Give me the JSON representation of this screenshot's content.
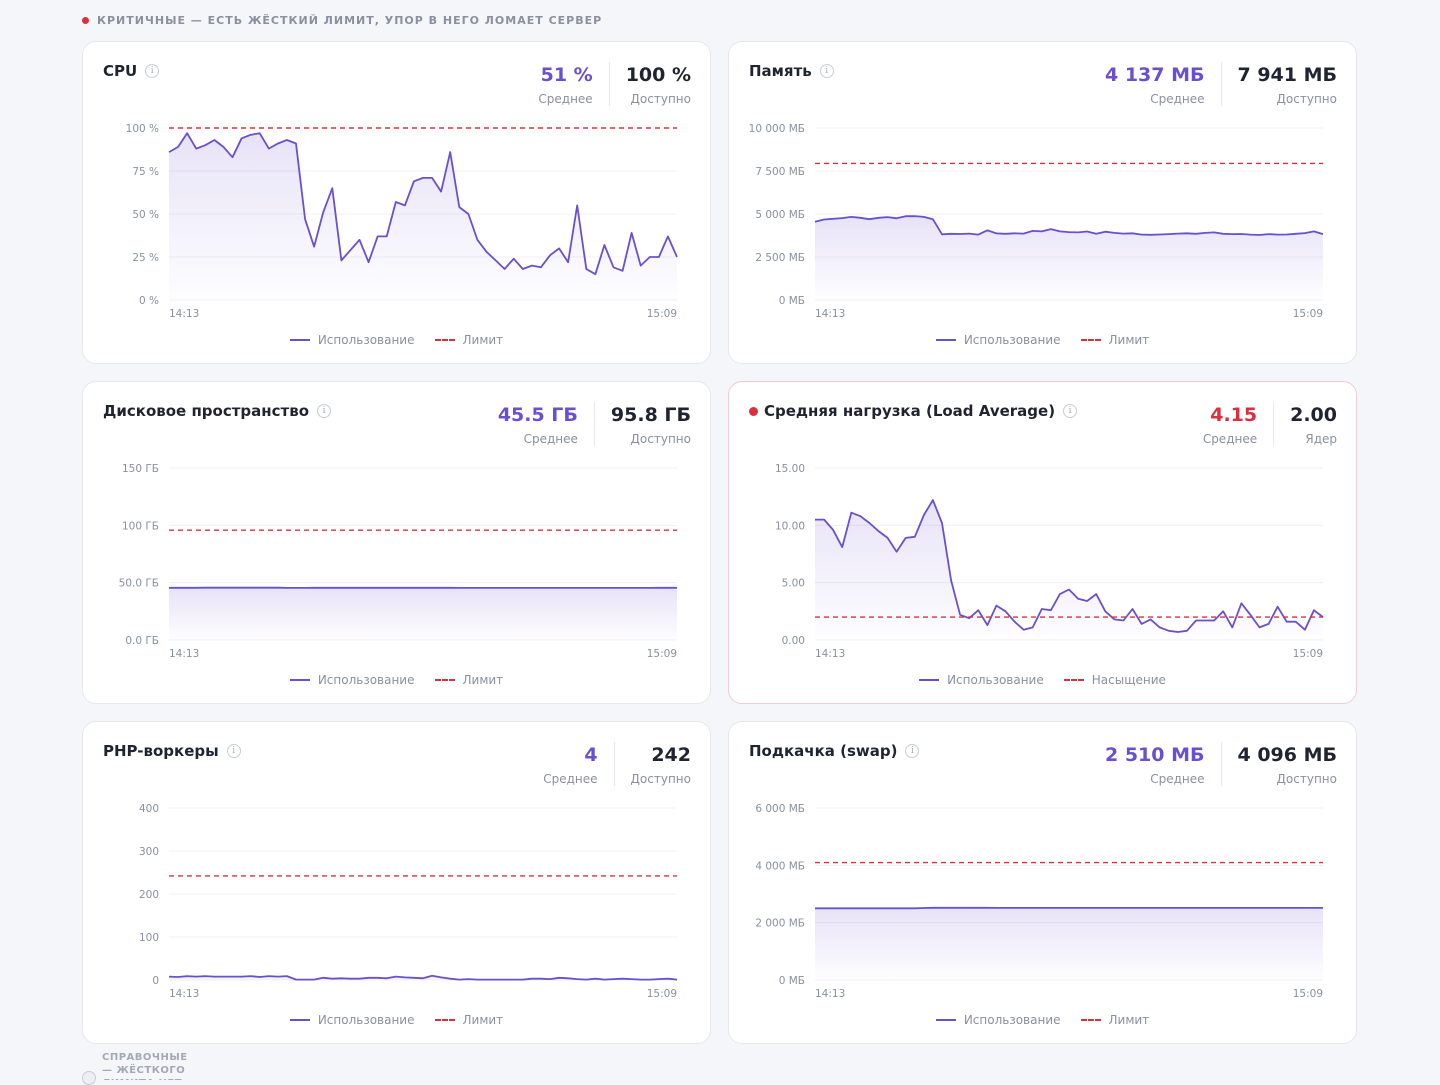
{
  "section": {
    "title": "КРИТИЧНЫЕ — ЕСТЬ ЖЁСТКИЙ ЛИМИТ, УПОР В НЕГО ЛОМАЕТ СЕРВЕР",
    "dot_color": "#dc2f3b"
  },
  "footer": {
    "title": "СПРАВОЧНЫЕ — ЖЁСТКОГО ЛИМИТА НЕТ"
  },
  "colors": {
    "accent": "#6a4fcf",
    "limit": "#d8313d",
    "alert": "#d8313d"
  },
  "cards": [
    {
      "title": "CPU",
      "critical": false,
      "avg_value": "51 %",
      "avg_label": "Среднее",
      "avg_color": "accent",
      "total_value": "100 %",
      "total_label": "Доступно",
      "legend_usage": "Использование",
      "legend_limit": "Лимит"
    },
    {
      "title": "Память",
      "critical": false,
      "avg_value": "4 137 МБ",
      "avg_label": "Среднее",
      "avg_color": "accent",
      "total_value": "7 941 МБ",
      "total_label": "Доступно",
      "legend_usage": "Использование",
      "legend_limit": "Лимит"
    },
    {
      "title": "Дисковое пространство",
      "critical": false,
      "avg_value": "45.5 ГБ",
      "avg_label": "Среднее",
      "avg_color": "accent",
      "total_value": "95.8 ГБ",
      "total_label": "Доступно",
      "legend_usage": "Использование",
      "legend_limit": "Лимит"
    },
    {
      "title": "Средняя нагрузка (Load Average)",
      "critical": true,
      "avg_value": "4.15",
      "avg_label": "Среднее",
      "avg_color": "alert",
      "total_value": "2.00",
      "total_label": "Ядер",
      "legend_usage": "Использование",
      "legend_limit": "Насыщение"
    },
    {
      "title": "PHP-воркеры",
      "critical": false,
      "avg_value": "4",
      "avg_label": "Среднее",
      "avg_color": "accent",
      "total_value": "242",
      "total_label": "Доступно",
      "legend_usage": "Использование",
      "legend_limit": "Лимит"
    },
    {
      "title": "Подкачка (swap)",
      "critical": false,
      "avg_value": "2 510 МБ",
      "avg_label": "Среднее",
      "avg_color": "accent",
      "total_value": "4 096 МБ",
      "total_label": "Доступно",
      "legend_usage": "Использование",
      "legend_limit": "Лимит"
    }
  ],
  "chart_data": [
    {
      "type": "area",
      "x_start": "14:13",
      "x_end": "15:09",
      "ylim": [
        0,
        100
      ],
      "yticks": [
        0,
        25,
        50,
        75,
        100
      ],
      "ytick_labels": [
        "0 %",
        "25 %",
        "50 %",
        "75 %",
        "100 %"
      ],
      "limit": 100,
      "values": [
        86,
        89,
        97,
        88,
        90,
        93,
        89,
        83,
        94,
        96,
        97,
        88,
        91,
        93,
        91,
        47,
        31,
        51,
        65,
        23,
        29,
        35,
        22,
        37,
        37,
        57,
        55,
        69,
        71,
        71,
        63,
        86,
        54,
        50,
        35,
        28,
        23,
        18,
        24,
        18,
        20,
        19,
        26,
        30,
        22,
        55,
        18,
        15,
        32,
        19,
        17,
        39,
        20,
        25,
        25,
        37,
        25
      ]
    },
    {
      "type": "area",
      "x_start": "14:13",
      "x_end": "15:09",
      "ylim": [
        0,
        10000
      ],
      "yticks": [
        0,
        2500,
        5000,
        7500,
        10000
      ],
      "ytick_labels": [
        "0 МБ",
        "2 500 МБ",
        "5 000 МБ",
        "7 500 МБ",
        "10 000 МБ"
      ],
      "limit": 7941,
      "values": [
        4550,
        4680,
        4720,
        4760,
        4830,
        4780,
        4700,
        4780,
        4820,
        4750,
        4870,
        4880,
        4830,
        4700,
        3820,
        3850,
        3840,
        3860,
        3800,
        4050,
        3870,
        3850,
        3880,
        3860,
        4020,
        3990,
        4120,
        3990,
        3950,
        3930,
        3980,
        3850,
        3970,
        3900,
        3860,
        3880,
        3800,
        3790,
        3810,
        3830,
        3860,
        3880,
        3850,
        3900,
        3930,
        3850,
        3830,
        3840,
        3800,
        3780,
        3830,
        3800,
        3810,
        3850,
        3890,
        3990,
        3830
      ]
    },
    {
      "type": "area",
      "x_start": "14:13",
      "x_end": "15:09",
      "ylim": [
        0,
        150
      ],
      "yticks": [
        0,
        50,
        100,
        150
      ],
      "ytick_labels": [
        "0.0 ГБ",
        "50.0 ГБ",
        "100 ГБ",
        "150 ГБ"
      ],
      "limit": 95.8,
      "values": [
        45.5,
        45.5,
        45.5,
        45.5,
        45.6,
        45.6,
        45.6,
        45.6,
        45.6,
        45.6,
        45.6,
        45.6,
        45.6,
        45.4,
        45.4,
        45.4,
        45.5,
        45.5,
        45.5,
        45.5,
        45.5,
        45.5,
        45.5,
        45.5,
        45.5,
        45.5,
        45.5,
        45.5,
        45.5,
        45.5,
        45.5,
        45.5,
        45.4,
        45.4,
        45.4,
        45.4,
        45.4,
        45.4,
        45.4,
        45.4,
        45.4,
        45.4,
        45.4,
        45.4,
        45.4,
        45.4,
        45.4,
        45.4,
        45.4,
        45.4,
        45.4,
        45.4,
        45.4,
        45.4,
        45.5,
        45.5,
        45.5
      ]
    },
    {
      "type": "area",
      "x_start": "14:13",
      "x_end": "15:09",
      "ylim": [
        0,
        15
      ],
      "yticks": [
        0,
        5,
        10,
        15
      ],
      "ytick_labels": [
        "0.00",
        "5.00",
        "10.00",
        "15.00"
      ],
      "limit": 2.0,
      "values": [
        10.5,
        10.5,
        9.6,
        8.1,
        11.1,
        10.8,
        10.2,
        9.5,
        8.9,
        7.7,
        8.9,
        9.0,
        10.9,
        12.2,
        10.2,
        5.2,
        2.2,
        1.9,
        2.6,
        1.3,
        3.0,
        2.5,
        1.6,
        0.9,
        1.1,
        2.7,
        2.6,
        4.0,
        4.4,
        3.6,
        3.4,
        4.0,
        2.5,
        1.8,
        1.7,
        2.7,
        1.4,
        1.8,
        1.1,
        0.8,
        0.7,
        0.8,
        1.7,
        1.7,
        1.7,
        2.5,
        1.1,
        3.2,
        2.2,
        1.1,
        1.4,
        2.9,
        1.6,
        1.6,
        0.9,
        2.6,
        2.0
      ]
    },
    {
      "type": "area",
      "x_start": "14:13",
      "x_end": "15:09",
      "ylim": [
        0,
        400
      ],
      "yticks": [
        0,
        100,
        200,
        300,
        400
      ],
      "ytick_labels": [
        "0",
        "100",
        "200",
        "300",
        "400"
      ],
      "limit": 242,
      "values": [
        8,
        7,
        9,
        8,
        9,
        8,
        8,
        8,
        8,
        9,
        7,
        9,
        8,
        9,
        1,
        1,
        1,
        5,
        3,
        4,
        3,
        3,
        5,
        5,
        4,
        8,
        6,
        5,
        4,
        10,
        6,
        3,
        1,
        2,
        1,
        1,
        1,
        1,
        1,
        1,
        3,
        3,
        2,
        5,
        4,
        2,
        1,
        3,
        1,
        2,
        3,
        2,
        1,
        1,
        2,
        3,
        1
      ]
    },
    {
      "type": "area",
      "x_start": "14:13",
      "x_end": "15:09",
      "ylim": [
        0,
        6000
      ],
      "yticks": [
        0,
        2000,
        4000,
        6000
      ],
      "ytick_labels": [
        "0 МБ",
        "2 000 МБ",
        "4 000 МБ",
        "6 000 МБ"
      ],
      "limit": 4096,
      "values": [
        2500,
        2500,
        2500,
        2500,
        2500,
        2500,
        2500,
        2500,
        2500,
        2500,
        2500,
        2500,
        2510,
        2520,
        2520,
        2520,
        2520,
        2520,
        2520,
        2520,
        2515,
        2515,
        2515,
        2515,
        2515,
        2515,
        2515,
        2515,
        2515,
        2515,
        2515,
        2515,
        2515,
        2515,
        2515,
        2515,
        2515,
        2515,
        2515,
        2515,
        2515,
        2515,
        2515,
        2515,
        2515,
        2515,
        2515,
        2515,
        2515,
        2515,
        2515,
        2515,
        2515,
        2515,
        2515,
        2515,
        2515
      ]
    }
  ]
}
